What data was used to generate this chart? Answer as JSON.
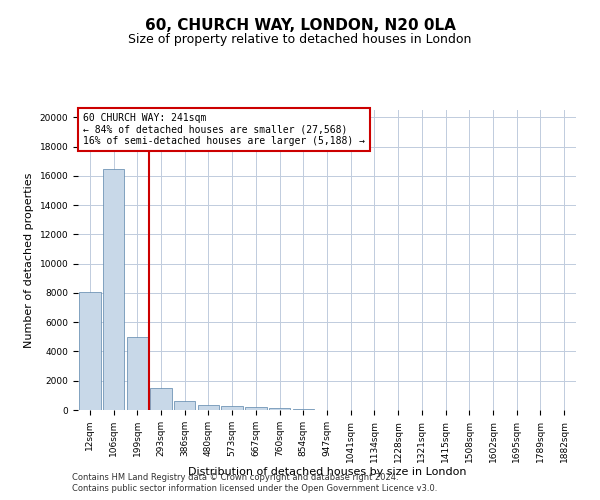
{
  "title": "60, CHURCH WAY, LONDON, N20 0LA",
  "subtitle": "Size of property relative to detached houses in London",
  "xlabel": "Distribution of detached houses by size in London",
  "ylabel": "Number of detached properties",
  "bar_labels": [
    "12sqm",
    "106sqm",
    "199sqm",
    "293sqm",
    "386sqm",
    "480sqm",
    "573sqm",
    "667sqm",
    "760sqm",
    "854sqm",
    "947sqm",
    "1041sqm",
    "1134sqm",
    "1228sqm",
    "1321sqm",
    "1415sqm",
    "1508sqm",
    "1602sqm",
    "1695sqm",
    "1789sqm",
    "1882sqm"
  ],
  "bar_heights": [
    8050,
    16500,
    5000,
    1500,
    600,
    370,
    260,
    185,
    125,
    90,
    0,
    0,
    0,
    0,
    0,
    0,
    0,
    0,
    0,
    0,
    0
  ],
  "bar_color": "#c8d8e8",
  "bar_edgecolor": "#5a85aa",
  "bar_linewidth": 0.5,
  "vline_x": 2.5,
  "vline_color": "#cc0000",
  "annotation_title": "60 CHURCH WAY: 241sqm",
  "annotation_line1": "← 84% of detached houses are smaller (27,568)",
  "annotation_line2": "16% of semi-detached houses are larger (5,188) →",
  "annotation_box_color": "#cc0000",
  "ylim": [
    0,
    20500
  ],
  "yticks": [
    0,
    2000,
    4000,
    6000,
    8000,
    10000,
    12000,
    14000,
    16000,
    18000,
    20000
  ],
  "footer1": "Contains HM Land Registry data © Crown copyright and database right 2024.",
  "footer2": "Contains public sector information licensed under the Open Government Licence v3.0.",
  "bg_color": "#ffffff",
  "grid_color": "#c0ccdd",
  "title_fontsize": 11,
  "subtitle_fontsize": 9,
  "axis_label_fontsize": 8,
  "tick_fontsize": 6.5,
  "footer_fontsize": 6,
  "annot_fontsize": 7
}
